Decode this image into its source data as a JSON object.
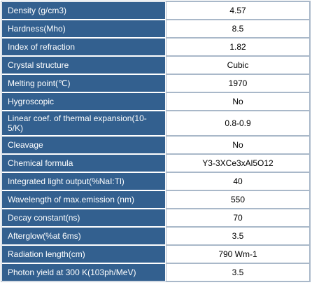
{
  "properties": [
    {
      "label": "Density (g/cm3)",
      "value": "4.57"
    },
    {
      "label": "Hardness(Mho)",
      "value": "8.5"
    },
    {
      "label": "Index of refraction",
      "value": "1.82"
    },
    {
      "label": "Crystal structure",
      "value": "Cubic"
    },
    {
      "label": "Melting point(℃)",
      "value": "1970"
    },
    {
      "label": "Hygroscopic",
      "value": "No"
    },
    {
      "label": "Linear coef. of thermal expansion(10-5/K)",
      "value": "0.8-0.9"
    },
    {
      "label": "Cleavage",
      "value": "No"
    },
    {
      "label": "Chemical formula",
      "value": "Y3-3XCe3xAl5O12"
    },
    {
      "label": "Integrated light output(%NaI:Tl)",
      "value": "40"
    },
    {
      "label": "Wavelength of max.emission (nm)",
      "value": "550"
    },
    {
      "label": "Decay constant(ns)",
      "value": "70"
    },
    {
      "label": "Afterglow(%at 6ms)",
      "value": "3.5"
    },
    {
      "label": "Radiation length(cm)",
      "value": "790 Wm-1"
    },
    {
      "label": "Photon yield at 300 K(103ph/MeV)",
      "value": "3.5"
    }
  ]
}
